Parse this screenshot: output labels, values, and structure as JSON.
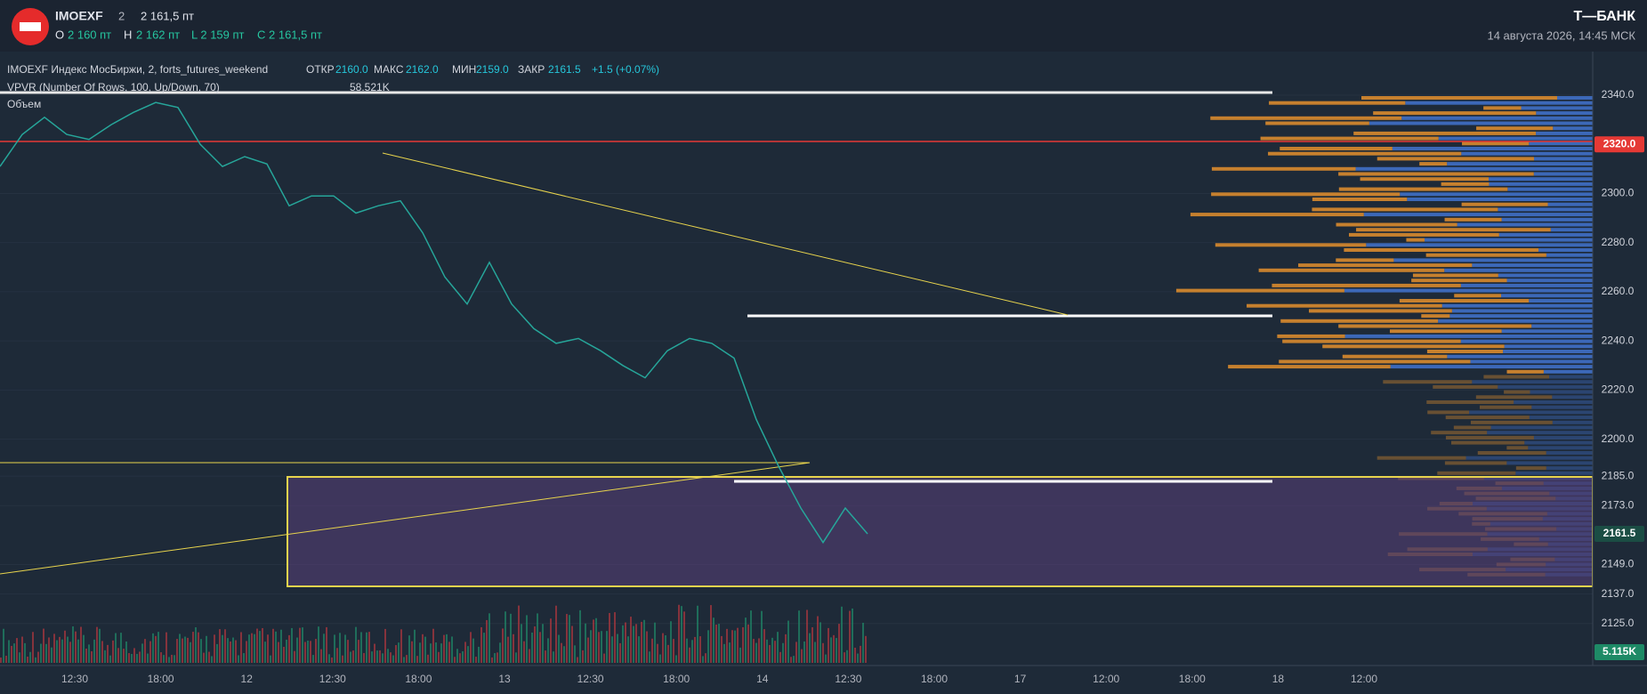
{
  "header": {
    "symbol": "IMOEXF",
    "interval": "2",
    "price": "2 161,5 пт",
    "o_label": "O",
    "o_value": "2 160 пт",
    "h_label": "H",
    "h_value": "2 162 пт",
    "l_text": "L 2 159 пт",
    "c_text": "C 2 161,5 пт",
    "brand": "Т—БАНК",
    "datetime": "14 августа 2026, 14:45 МСК"
  },
  "legend": {
    "title": "IMOEXF Индекс МосБиржи, 2, forts_futures_weekend",
    "open_label": "ОТКР",
    "open": "2160.0",
    "high_label": "МАКС",
    "high": "2162.0",
    "low_label": "МИН",
    "low": "2159.0",
    "close_label": "ЗАКР",
    "close": "2161.5",
    "change": "+1.5 (+0.07%)",
    "vpvr": "VPVR (Number Of Rows, 100, Up/Down, 70)",
    "vpvr_value": "58.521K",
    "volume": "Объем"
  },
  "chart_data": {
    "type": "line",
    "color": "#26a69a",
    "values": [
      2311,
      2324,
      2331,
      2324,
      2322,
      2328,
      2333,
      2337,
      2335,
      2320,
      2311,
      2315,
      2312,
      2295,
      2299,
      2299,
      2292,
      2295,
      2297,
      2284,
      2266,
      2255,
      2272,
      2255,
      2245,
      2239,
      2241,
      2236,
      2230,
      2225,
      2236,
      2241,
      2239,
      2233,
      2208,
      2189,
      2172,
      2158,
      2172,
      2161.5
    ],
    "ylim": [
      2109,
      2357
    ],
    "yticks": [
      {
        "value": 2340,
        "label": "2340.0"
      },
      {
        "value": 2300,
        "label": "2300.0"
      },
      {
        "value": 2280,
        "label": "2280.0"
      },
      {
        "value": 2260,
        "label": "2260.0"
      },
      {
        "value": 2240,
        "label": "2240.0"
      },
      {
        "value": 2220,
        "label": "2220.0"
      },
      {
        "value": 2200,
        "label": "2200.0"
      },
      {
        "value": 2185,
        "label": "2185.0"
      },
      {
        "value": 2173,
        "label": "2173.0"
      },
      {
        "value": 2149,
        "label": "2149.0"
      },
      {
        "value": 2137,
        "label": "2137.0"
      },
      {
        "value": 2125,
        "label": "2125.0"
      }
    ],
    "level": {
      "value": 2320,
      "label": "2320.0"
    },
    "last": {
      "value": 2161.5,
      "label": "2161.5"
    },
    "volume_label": "5.115K",
    "xticks": [
      "12:30",
      "18:00",
      "12",
      "12:30",
      "18:00",
      "13",
      "12:30",
      "18:00",
      "14",
      "12:30",
      "18:00",
      "17",
      "12:00",
      "18:00",
      "18",
      "12:00"
    ],
    "grid": true
  }
}
